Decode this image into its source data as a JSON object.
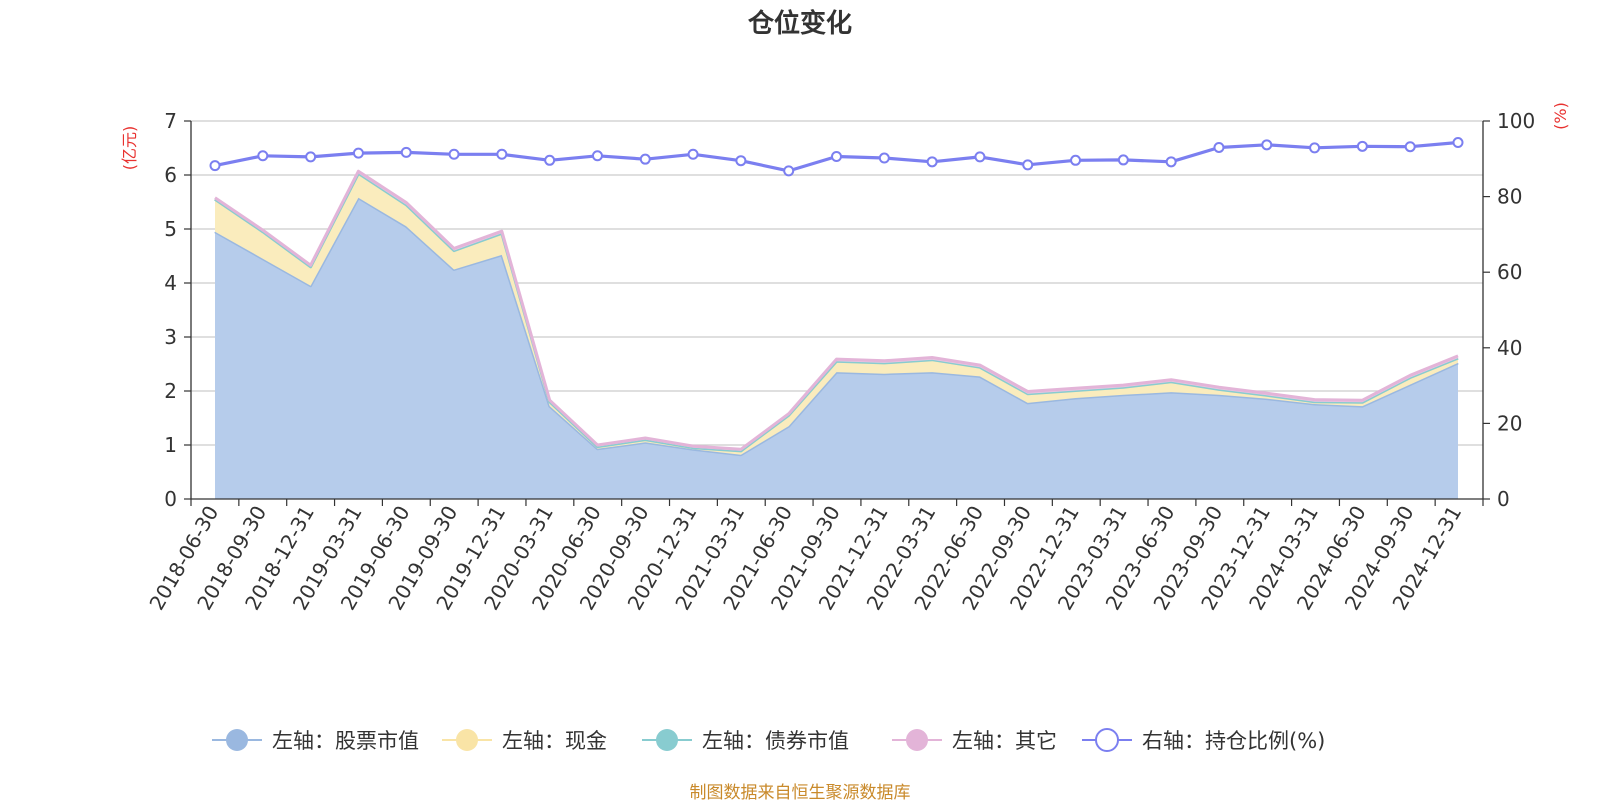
{
  "chart_data": {
    "type": "area",
    "title": "仓位变化",
    "source": "制图数据来自恒生聚源数据库",
    "left_axis": {
      "unit": "亿元",
      "min": 0,
      "max": 7,
      "ticks": [
        "0",
        "1",
        "2",
        "3",
        "4",
        "5",
        "6",
        "7"
      ]
    },
    "right_axis": {
      "unit": "%",
      "min": 0,
      "max": 100,
      "ticks": [
        "0",
        "20",
        "40",
        "60",
        "80",
        "100"
      ]
    },
    "categories": [
      "2018-06-30",
      "2018-09-30",
      "2018-12-31",
      "2019-03-31",
      "2019-06-30",
      "2019-09-30",
      "2019-12-31",
      "2020-03-31",
      "2020-06-30",
      "2020-09-30",
      "2020-12-31",
      "2021-03-31",
      "2021-06-30",
      "2021-09-30",
      "2021-12-31",
      "2022-03-31",
      "2022-06-30",
      "2022-09-30",
      "2022-12-31",
      "2023-03-31",
      "2023-06-30",
      "2023-09-30",
      "2023-12-31",
      "2024-03-31",
      "2024-06-30",
      "2024-09-30",
      "2024-12-31"
    ],
    "stacked_series": [
      {
        "name": "左轴：股票市值",
        "color": "#9ab8e0",
        "fill": "#b6cceb",
        "values": [
          4.95,
          4.45,
          3.95,
          5.58,
          5.05,
          4.25,
          4.52,
          1.72,
          0.93,
          1.05,
          0.92,
          0.82,
          1.35,
          2.35,
          2.32,
          2.35,
          2.27,
          1.78,
          1.87,
          1.93,
          1.98,
          1.93,
          1.86,
          1.76,
          1.72,
          2.12,
          2.52
        ]
      },
      {
        "name": "左轴：现金",
        "color": "#f9e4a6",
        "fill": "#faecbd",
        "values": [
          0.6,
          0.5,
          0.35,
          0.45,
          0.4,
          0.35,
          0.4,
          0.08,
          0.04,
          0.05,
          0.03,
          0.07,
          0.2,
          0.2,
          0.2,
          0.23,
          0.17,
          0.17,
          0.14,
          0.14,
          0.19,
          0.1,
          0.06,
          0.04,
          0.07,
          0.13,
          0.09
        ]
      },
      {
        "name": "左轴：债券市值",
        "color": "#88ccd0",
        "fill": "#a8dadd",
        "values": [
          0,
          0,
          0,
          0,
          0,
          0,
          0,
          0,
          0,
          0,
          0,
          0,
          0,
          0,
          0,
          0,
          0,
          0,
          0,
          0,
          0,
          0,
          0,
          0,
          0,
          0,
          0
        ]
      },
      {
        "name": "左轴：其它",
        "color": "#e3b4d8",
        "fill": "#ecc7e3",
        "values": [
          0.03,
          0.03,
          0.03,
          0.04,
          0.04,
          0.04,
          0.04,
          0.03,
          0.03,
          0.03,
          0.03,
          0.03,
          0.03,
          0.04,
          0.04,
          0.04,
          0.04,
          0.04,
          0.04,
          0.04,
          0.04,
          0.04,
          0.04,
          0.04,
          0.04,
          0.04,
          0.04
        ]
      }
    ],
    "line_series": {
      "name": "右轴：持仓比例(%)",
      "color": "#7b7ff0",
      "values": [
        88.2,
        90.8,
        90.5,
        91.5,
        91.7,
        91.2,
        91.2,
        89.6,
        90.8,
        89.9,
        91.2,
        89.5,
        86.8,
        90.6,
        90.2,
        89.2,
        90.5,
        88.4,
        89.6,
        89.7,
        89.2,
        93.0,
        93.7,
        92.9,
        93.3,
        93.2,
        94.3
      ]
    },
    "legend_position": "bottom",
    "grid": true
  }
}
